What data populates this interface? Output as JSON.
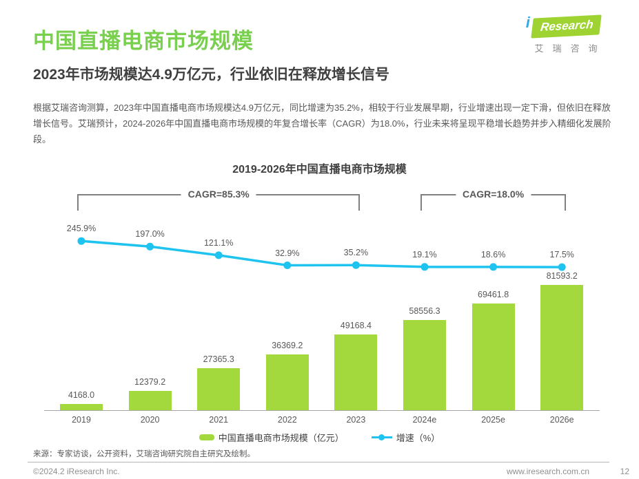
{
  "header": {
    "title": "中国直播电商市场规模",
    "subtitle": "2023年市场规模达4.9万亿元，行业依旧在释放增长信号",
    "body": "根据艾瑞咨询测算，2023年中国直播电商市场规模达4.9万亿元，同比增速为35.2%，相较于行业发展早期，行业增速出现一定下滑，但依旧在释放增长信号。艾瑞预计，2024-2026年中国直播电商市场规模的年复合增长率（CAGR）为18.0%，行业未来将呈现平稳增长趋势并步入精细化发展阶段。"
  },
  "logo": {
    "i": "i",
    "research": "Research",
    "cn": "艾瑞咨询"
  },
  "chart_data": {
    "type": "bar",
    "title": "2019-2026年中国直播电商市场规模",
    "categories": [
      "2019",
      "2020",
      "2021",
      "2022",
      "2023",
      "2024e",
      "2025e",
      "2026e"
    ],
    "series": [
      {
        "name": "中国直播电商市场规模（亿元）",
        "type": "bar",
        "color": "#a3d93c",
        "values": [
          4168.0,
          12379.2,
          27365.3,
          36369.2,
          49168.4,
          58556.3,
          69461.8,
          81593.2
        ]
      },
      {
        "name": "增速（%）",
        "type": "line",
        "color": "#1ec3ef",
        "values": [
          245.9,
          197.0,
          121.1,
          32.9,
          35.2,
          19.1,
          18.6,
          17.5
        ]
      }
    ],
    "annotations": [
      {
        "label": "CAGR=85.3%",
        "from": 0,
        "to": 4
      },
      {
        "label": "CAGR=18.0%",
        "from": 5,
        "to": 7
      }
    ],
    "ylim": [
      0,
      81593.2
    ],
    "y2lim": [
      0,
      250
    ],
    "grid": false,
    "legend_position": "bottom"
  },
  "footer": {
    "source": "来源：专家访谈，公开资料，艾瑞咨询研究院自主研究及绘制。",
    "copyright": "©2024.2 iResearch Inc.",
    "website": "www.iresearch.com.cn",
    "page_number": "12"
  }
}
